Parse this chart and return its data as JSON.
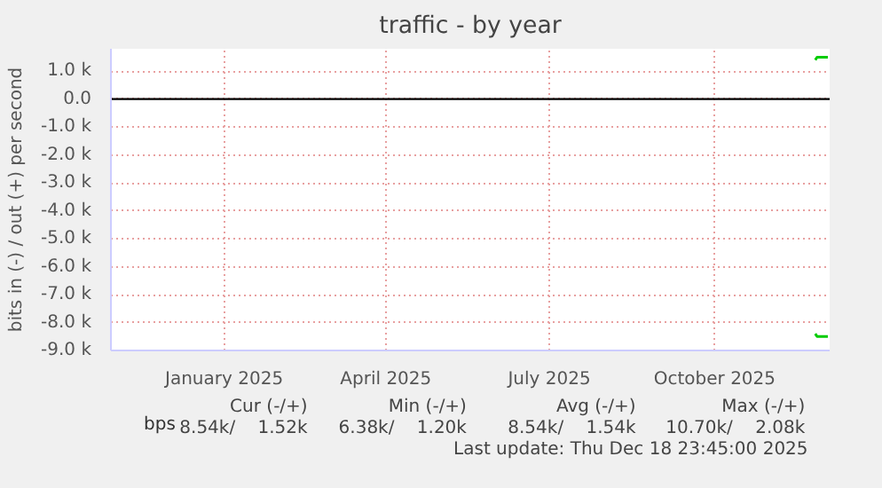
{
  "chart_data": {
    "type": "line",
    "title": "traffic - by year",
    "ylabel": "bits in (-) / out (+) per second",
    "xlim": [
      "2024-11-13",
      "2025-12-18"
    ],
    "xticks": [
      {
        "value": "2025-01-15",
        "label": "January 2025"
      },
      {
        "value": "2025-04-15",
        "label": "April 2025"
      },
      {
        "value": "2025-07-15",
        "label": "July 2025"
      },
      {
        "value": "2025-10-15",
        "label": "October 2025"
      }
    ],
    "ylim": [
      -9000,
      1800
    ],
    "yticks": [
      {
        "value": -9000,
        "label": "-9.0 k"
      },
      {
        "value": -8000,
        "label": "-8.0 k"
      },
      {
        "value": -7000,
        "label": "-7.0 k"
      },
      {
        "value": -6000,
        "label": "-6.0 k"
      },
      {
        "value": -5000,
        "label": "-5.0 k"
      },
      {
        "value": -4000,
        "label": "-4.0 k"
      },
      {
        "value": -3000,
        "label": "-3.0 k"
      },
      {
        "value": -2000,
        "label": "-2.0 k"
      },
      {
        "value": -1000,
        "label": "-1.0 k"
      },
      {
        "value": 0,
        "label": "0.0"
      },
      {
        "value": 1000,
        "label": "1.0 k"
      }
    ],
    "grid": true,
    "legend": "bottom",
    "line_style": "solid",
    "marker": "none",
    "series": [
      {
        "name": "bps",
        "color": "#00cc00",
        "x": [
          "2025-12-10",
          "2025-12-11",
          "2025-12-12",
          "2025-12-13",
          "2025-12-14",
          "2025-12-15",
          "2025-12-16",
          "2025-12-17"
        ],
        "values": [
          1400,
          1500,
          1500,
          1500,
          1500,
          1500,
          1500,
          1500
        ]
      },
      {
        "color": "#00cc00",
        "x": [
          "2025-12-10",
          "2025-12-11",
          "2025-12-12",
          "2025-12-13",
          "2025-12-14",
          "2025-12-15",
          "2025-12-16",
          "2025-12-17"
        ],
        "values": [
          -8400,
          -8500,
          -8500,
          -8500,
          -8500,
          -8500,
          -8500,
          -8500
        ]
      }
    ],
    "ref_lines": [
      {
        "axis": "y",
        "value": 0,
        "color": "#000000"
      }
    ],
    "annotations": [
      "Cur (-/+)",
      "8.54k/",
      "1.52k",
      "Min (-/+)",
      "6.38k/",
      "1.20k",
      "Avg (-/+)",
      "8.54k/",
      "1.54k",
      "Max (-/+)",
      "10.70k/",
      "2.08k",
      "Last update: Thu Dec 18 23:45:00 2025"
    ]
  }
}
